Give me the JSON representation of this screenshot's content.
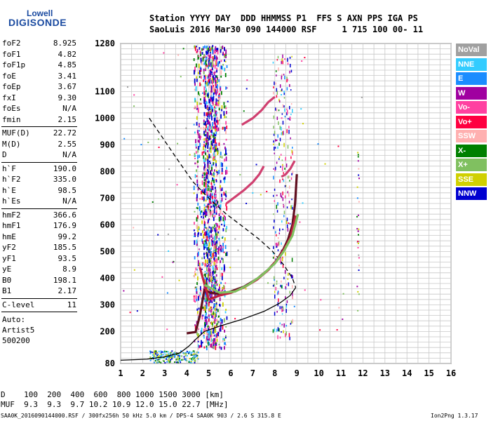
{
  "logo": {
    "line1": "Lowell",
    "line2": "DIGISONDE"
  },
  "header": {
    "row1": "Station YYYY DAY  DDD HHMMSS P1  FFS S AXN PPS IGA PS",
    "row2": "SaoLuis 2016 Mar30 090 144000 RSF     1 715 100 00- 11"
  },
  "params_group1": [
    {
      "label": "foF2",
      "value": "8.925"
    },
    {
      "label": "foF1",
      "value": "4.82"
    },
    {
      "label": "foF1p",
      "value": "4.85"
    },
    {
      "label": "foE",
      "value": "3.41"
    },
    {
      "label": "foEp",
      "value": "3.67"
    },
    {
      "label": "fxI",
      "value": "9.30"
    },
    {
      "label": "foEs",
      "value": "N/A"
    },
    {
      "label": "fmin",
      "value": "2.15"
    }
  ],
  "params_group2": [
    {
      "label": "MUF(D)",
      "value": "22.72"
    },
    {
      "label": "M(D)",
      "value": "2.55"
    },
    {
      "label": "D",
      "value": "N/A"
    }
  ],
  "params_group3": [
    {
      "label": "h`F",
      "value": "190.0"
    },
    {
      "label": "h`F2",
      "value": "335.0"
    },
    {
      "label": "h`E",
      "value": "98.5"
    },
    {
      "label": "h`Es",
      "value": "N/A"
    }
  ],
  "params_group4": [
    {
      "label": "hmF2",
      "value": "366.6"
    },
    {
      "label": "hmF1",
      "value": "176.9"
    },
    {
      "label": "hmE",
      "value": "99.2"
    },
    {
      "label": "yF2",
      "value": "185.5"
    },
    {
      "label": "yF1",
      "value": "93.5"
    },
    {
      "label": "yE",
      "value": "8.9"
    },
    {
      "label": "B0",
      "value": "198.1"
    },
    {
      "label": "B1",
      "value": "2.17"
    }
  ],
  "params_group5": [
    {
      "label": "C-level",
      "value": "11"
    }
  ],
  "notes": [
    "Auto:",
    "Artist5",
    "500200"
  ],
  "legend": [
    {
      "label": "NoVal",
      "color": "#a0a0a0"
    },
    {
      "label": "NNE",
      "color": "#33ccff"
    },
    {
      "label": "E",
      "color": "#1a8cff"
    },
    {
      "label": "W",
      "color": "#a000a0"
    },
    {
      "label": "Vo-",
      "color": "#ff40a0"
    },
    {
      "label": "Vo+",
      "color": "#ff0040"
    },
    {
      "label": "SSW",
      "color": "#ffb0b0"
    },
    {
      "label": "X-",
      "color": "#008000"
    },
    {
      "label": "X+",
      "color": "#80c060"
    },
    {
      "label": "SSE",
      "color": "#d0d000"
    },
    {
      "label": "NNW",
      "color": "#0000d0"
    }
  ],
  "footer": {
    "d_row": "D    100  200  400  600  800 1000 1500 3000 [km]",
    "muf_row": "MUF  9.3  9.3  9.7 10.2 10.9 12.0 15.0 22.7 [MHz]",
    "file_info": "SAA0K_2016090144000.RSF / 300fx256h 50 kHz 5.0 km / DPS-4 SAA0K 903 / 2.6 S 315.8 E",
    "version": "Ion2Png 1.3.17"
  },
  "chart_data": {
    "type": "scatter",
    "title": "",
    "xlabel": "",
    "ylabel": "",
    "xlim": [
      1,
      16
    ],
    "ylim": [
      80,
      1280
    ],
    "x_ticks": [
      1,
      2,
      3,
      4,
      5,
      6,
      7,
      8,
      9,
      10,
      11,
      12,
      13,
      14,
      15,
      16
    ],
    "y_ticks": [
      80,
      200,
      300,
      400,
      500,
      600,
      700,
      800,
      900,
      1000,
      1100,
      1280
    ],
    "y_tick_labels": [
      "80",
      "200",
      "300",
      "400",
      "500",
      "600",
      "700",
      "800",
      "900",
      "1000",
      "1100",
      "1280"
    ],
    "grid": true,
    "legend_position": "right",
    "series": [
      {
        "color": "#000000",
        "style": "solid",
        "points": [
          [
            1,
            92
          ],
          [
            2.2,
            96
          ],
          [
            3,
            105
          ],
          [
            3.7,
            120
          ],
          [
            4.1,
            145
          ],
          [
            4.4,
            170
          ],
          [
            4.8,
            200
          ],
          [
            5.5,
            220
          ],
          [
            6.5,
            245
          ],
          [
            7.5,
            275
          ],
          [
            8.2,
            305
          ],
          [
            8.7,
            335
          ],
          [
            8.95,
            365
          ]
        ]
      },
      {
        "color": "#000000",
        "style": "dashed",
        "points": [
          [
            2.3,
            1000
          ],
          [
            3,
            915
          ],
          [
            3.7,
            830
          ],
          [
            4.3,
            760
          ],
          [
            5,
            700
          ],
          [
            5.8,
            640
          ],
          [
            6.6,
            590
          ],
          [
            7.3,
            545
          ],
          [
            7.9,
            500
          ],
          [
            8.4,
            450
          ],
          [
            8.8,
            400
          ],
          [
            8.95,
            365
          ]
        ]
      },
      {
        "color": "#601020",
        "style": "solid",
        "points": [
          [
            4.0,
            193
          ],
          [
            4.4,
            198
          ],
          [
            4.6,
            260
          ],
          [
            4.8,
            355
          ],
          [
            5.1,
            345
          ],
          [
            5.5,
            340
          ],
          [
            6.0,
            350
          ],
          [
            6.6,
            368
          ],
          [
            7.2,
            398
          ],
          [
            7.7,
            432
          ],
          [
            8.1,
            468
          ],
          [
            8.4,
            510
          ],
          [
            8.6,
            545
          ],
          [
            8.8,
            600
          ],
          [
            8.92,
            680
          ],
          [
            9.0,
            790
          ]
        ]
      },
      {
        "color": "#c02040",
        "style": "solid",
        "points": [
          [
            4.6,
            440
          ],
          [
            5.0,
            320
          ],
          [
            5.5,
            335
          ],
          [
            6.0,
            345
          ],
          [
            6.6,
            365
          ],
          [
            7.2,
            395
          ],
          [
            7.7,
            430
          ],
          [
            8.1,
            468
          ],
          [
            8.4,
            505
          ],
          [
            8.7,
            550
          ],
          [
            8.85,
            600
          ],
          [
            8.95,
            635
          ]
        ]
      },
      {
        "color": "#80c060",
        "style": "solid",
        "points": [
          [
            4.8,
            375
          ],
          [
            5.5,
            345
          ],
          [
            6.2,
            350
          ],
          [
            6.8,
            375
          ],
          [
            7.4,
            410
          ],
          [
            8.0,
            455
          ],
          [
            8.4,
            500
          ],
          [
            8.8,
            560
          ],
          [
            9.05,
            640
          ]
        ]
      },
      {
        "color": "#d04070",
        "style": "solid",
        "points": [
          [
            5.8,
            680
          ],
          [
            6.2,
            705
          ],
          [
            6.6,
            730
          ],
          [
            7.0,
            760
          ],
          [
            7.3,
            790
          ],
          [
            7.5,
            820
          ]
        ]
      },
      {
        "color": "#d04070",
        "style": "solid",
        "points": [
          [
            6.5,
            975
          ],
          [
            7.0,
            1000
          ],
          [
            7.4,
            1030
          ],
          [
            7.7,
            1060
          ],
          [
            8.0,
            1080
          ]
        ]
      },
      {
        "color": "#d04070",
        "style": "solid",
        "points": [
          [
            8.3,
            780
          ],
          [
            8.5,
            790
          ],
          [
            8.7,
            810
          ],
          [
            8.9,
            840
          ]
        ]
      }
    ]
  }
}
